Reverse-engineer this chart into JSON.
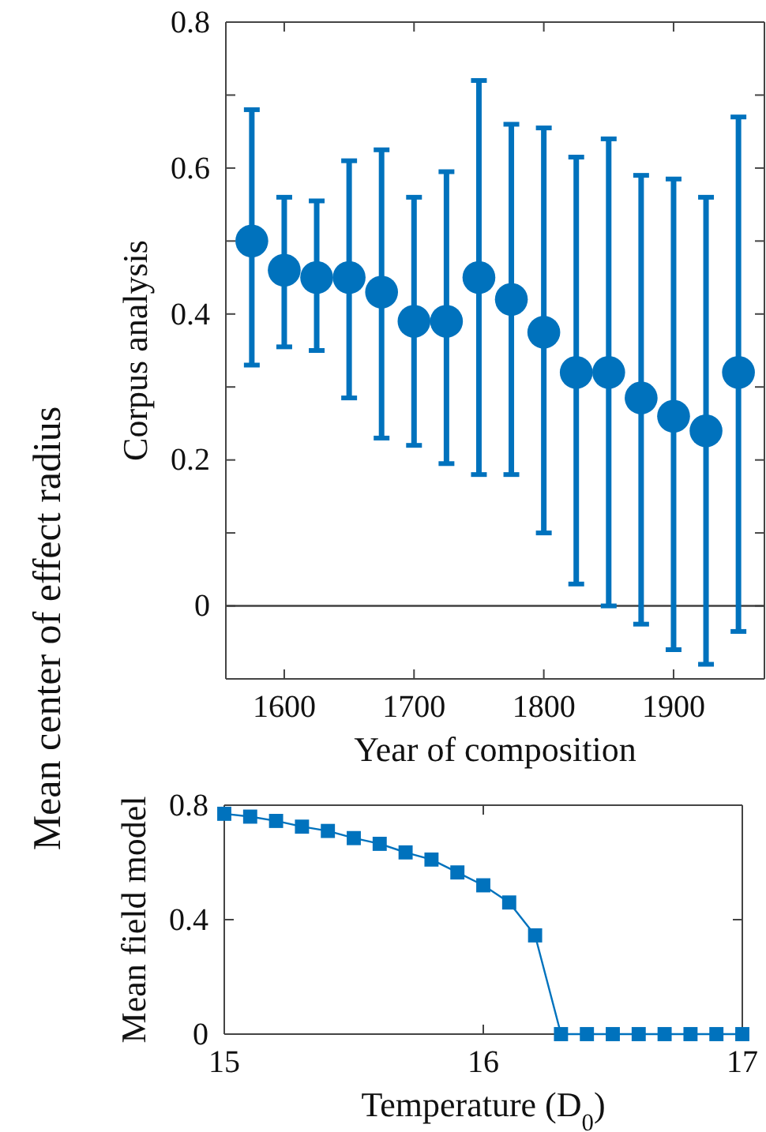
{
  "chart_data": [
    {
      "type": "scatter",
      "xlabel": "Year of composition",
      "ylabel": "Corpus analysis",
      "annotations": [
        "Mean center of effect radius"
      ],
      "x": [
        1575,
        1600,
        1625,
        1650,
        1675,
        1700,
        1725,
        1750,
        1775,
        1800,
        1825,
        1850,
        1875,
        1900,
        1925,
        1950
      ],
      "values": [
        0.5,
        0.46,
        0.45,
        0.45,
        0.43,
        0.39,
        0.39,
        0.45,
        0.42,
        0.375,
        0.32,
        0.32,
        0.285,
        0.26,
        0.24,
        0.32
      ],
      "errors": [
        [
          0.33,
          0.68
        ],
        [
          0.355,
          0.56
        ],
        [
          0.35,
          0.555
        ],
        [
          0.285,
          0.61
        ],
        [
          0.23,
          0.625
        ],
        [
          0.22,
          0.56
        ],
        [
          0.195,
          0.595
        ],
        [
          0.18,
          0.72
        ],
        [
          0.18,
          0.66
        ],
        [
          0.1,
          0.655
        ],
        [
          0.03,
          0.615
        ],
        [
          0,
          0.64
        ],
        [
          -0.025,
          0.59
        ],
        [
          -0.06,
          0.585
        ],
        [
          -0.08,
          0.56
        ],
        [
          -0.035,
          0.67
        ]
      ],
      "color": "#0072bd",
      "marker": "circle",
      "xlim": [
        1555,
        1970
      ],
      "xticks": [
        1600,
        1700,
        1800,
        1900
      ],
      "ylim": [
        -0.1,
        0.8
      ],
      "yticks": [
        {
          "value": -0.1,
          "label": null
        },
        0,
        {
          "value": 0.1,
          "label": null
        },
        0.2,
        {
          "value": 0.3,
          "label": null
        },
        0.4,
        {
          "value": 0.5,
          "label": null
        },
        0.6,
        {
          "value": 0.7,
          "label": null
        },
        0.8
      ],
      "ref_lines": [
        {
          "axis": "y",
          "value": 0,
          "color": "#404040"
        }
      ],
      "grid": false
    },
    {
      "type": "line",
      "xlabel": "Temperature (D$_{0}$)",
      "ylabel": "Mean field model",
      "x": [
        15.0,
        15.1,
        15.2,
        15.3,
        15.4,
        15.5,
        15.6,
        15.7,
        15.8,
        15.9,
        16.0,
        16.1,
        16.2,
        16.3,
        16.4,
        16.5,
        16.6,
        16.7,
        16.8,
        16.9,
        17.0
      ],
      "values": [
        0.77,
        0.76,
        0.745,
        0.725,
        0.71,
        0.685,
        0.665,
        0.635,
        0.61,
        0.565,
        0.52,
        0.46,
        0.345,
        0,
        0,
        0,
        0,
        0,
        0,
        0,
        0
      ],
      "color": "#0072bd",
      "marker": "square",
      "line_style": "solid",
      "xlim": [
        15,
        17
      ],
      "xticks": [
        15,
        16,
        17
      ],
      "ylim": [
        0,
        0.8
      ],
      "yticks": [
        0,
        0.4,
        0.8
      ],
      "grid": false
    }
  ]
}
